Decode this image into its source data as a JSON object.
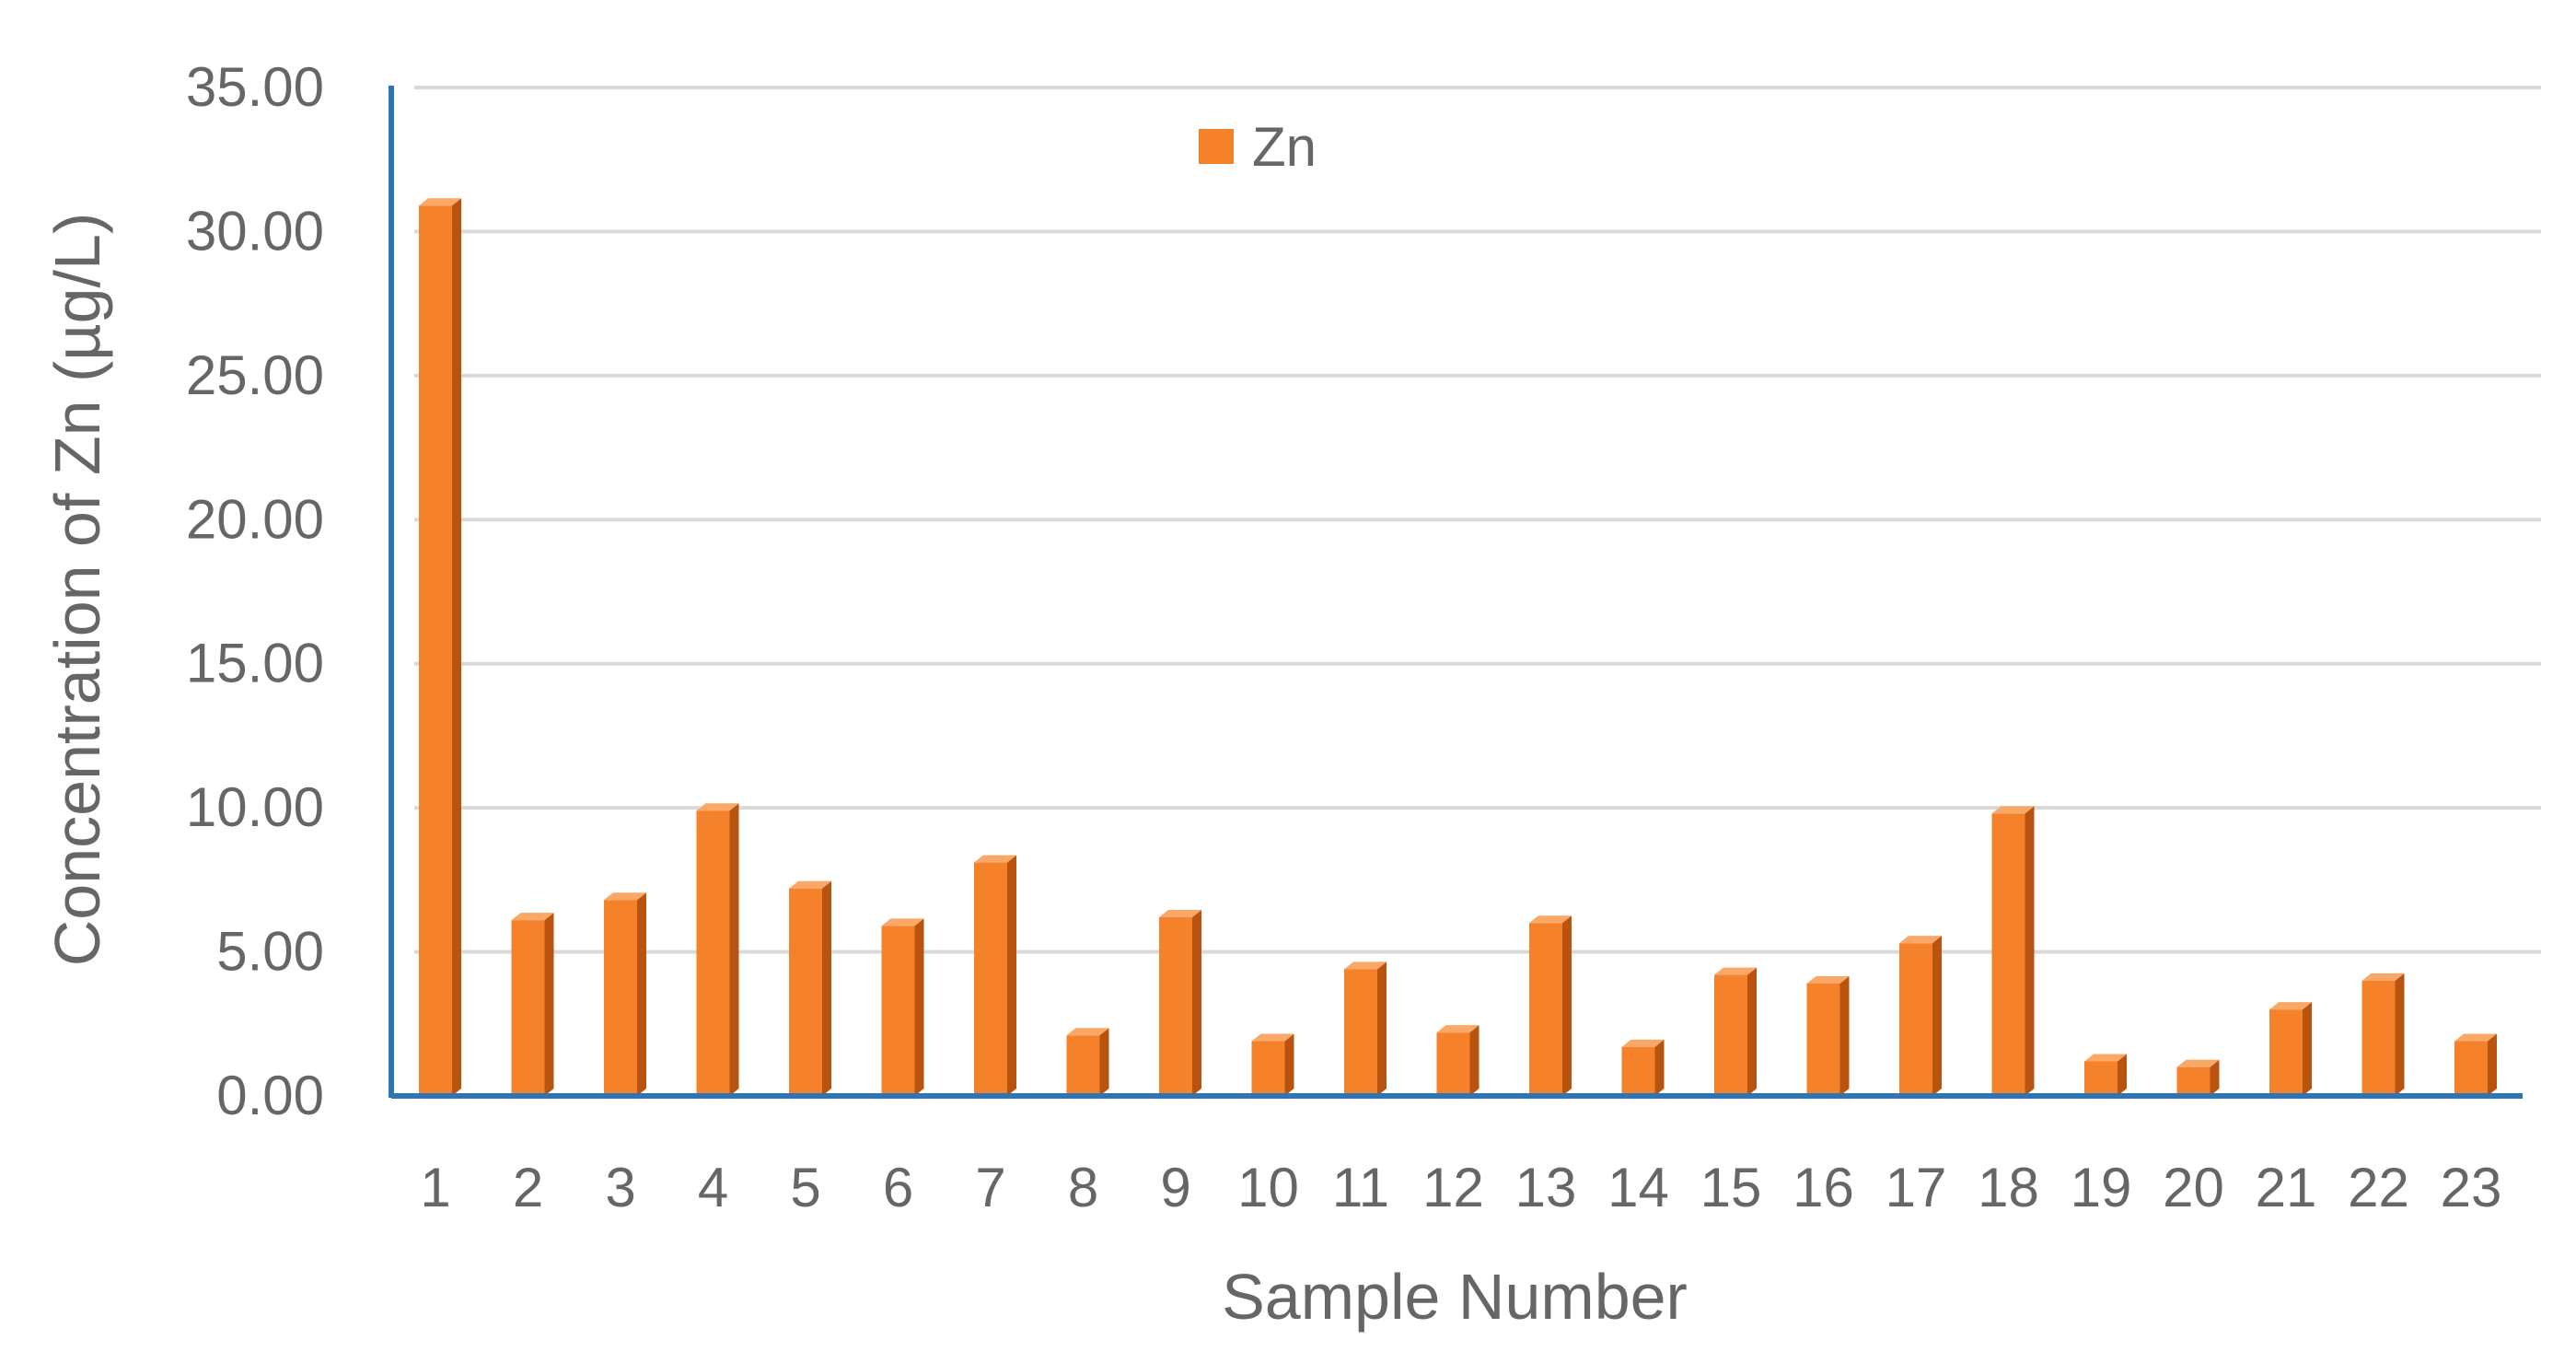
{
  "chart_data": {
    "type": "bar",
    "title": "",
    "xlabel": "Sample Number",
    "ylabel": "Concentration of Zn (µg/L)",
    "ylim": [
      0,
      35
    ],
    "yticks": [
      "0.00",
      "5.00",
      "10.00",
      "15.00",
      "20.00",
      "25.00",
      "30.00",
      "35.00"
    ],
    "categories": [
      "1",
      "2",
      "3",
      "4",
      "5",
      "6",
      "7",
      "8",
      "9",
      "10",
      "11",
      "12",
      "13",
      "14",
      "15",
      "16",
      "17",
      "18",
      "19",
      "20",
      "21",
      "22",
      "23"
    ],
    "series": [
      {
        "name": "Zn",
        "values": [
          30.9,
          6.1,
          6.8,
          9.9,
          7.2,
          5.9,
          8.1,
          2.1,
          6.2,
          1.9,
          4.4,
          2.2,
          6.0,
          1.7,
          4.2,
          3.9,
          5.3,
          9.8,
          1.2,
          1.0,
          3.0,
          4.0,
          1.9
        ],
        "color": "#F5822A"
      }
    ],
    "legend": {
      "position": "top-center",
      "label": "Zn"
    },
    "grid": true,
    "axis_color": "#2E75B6",
    "grid_color": "#D9D9D9"
  }
}
